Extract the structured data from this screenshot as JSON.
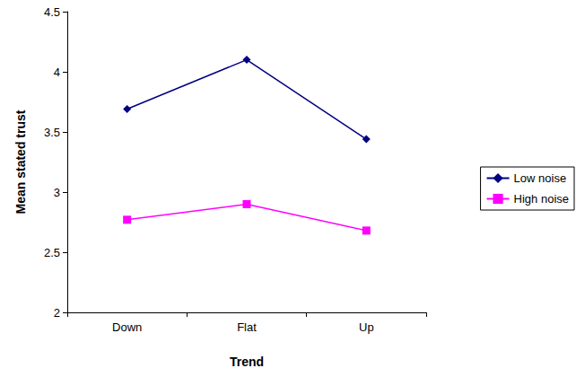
{
  "chart_data": {
    "type": "line",
    "x_label": "Trend",
    "y_label": "Mean stated trust",
    "categories": [
      "Down",
      "Flat",
      "Up"
    ],
    "series": [
      {
        "name": "Low noise",
        "color": "#000080",
        "marker": "diamond",
        "values": [
          3.69,
          4.1,
          3.44
        ]
      },
      {
        "name": "High noise",
        "color": "#ff00ff",
        "marker": "square",
        "values": [
          2.77,
          2.9,
          2.68
        ]
      }
    ],
    "ylim": [
      2,
      4.5
    ],
    "yticks": [
      2,
      2.5,
      3,
      3.5,
      4,
      4.5
    ],
    "grid": false,
    "legend": "right"
  }
}
